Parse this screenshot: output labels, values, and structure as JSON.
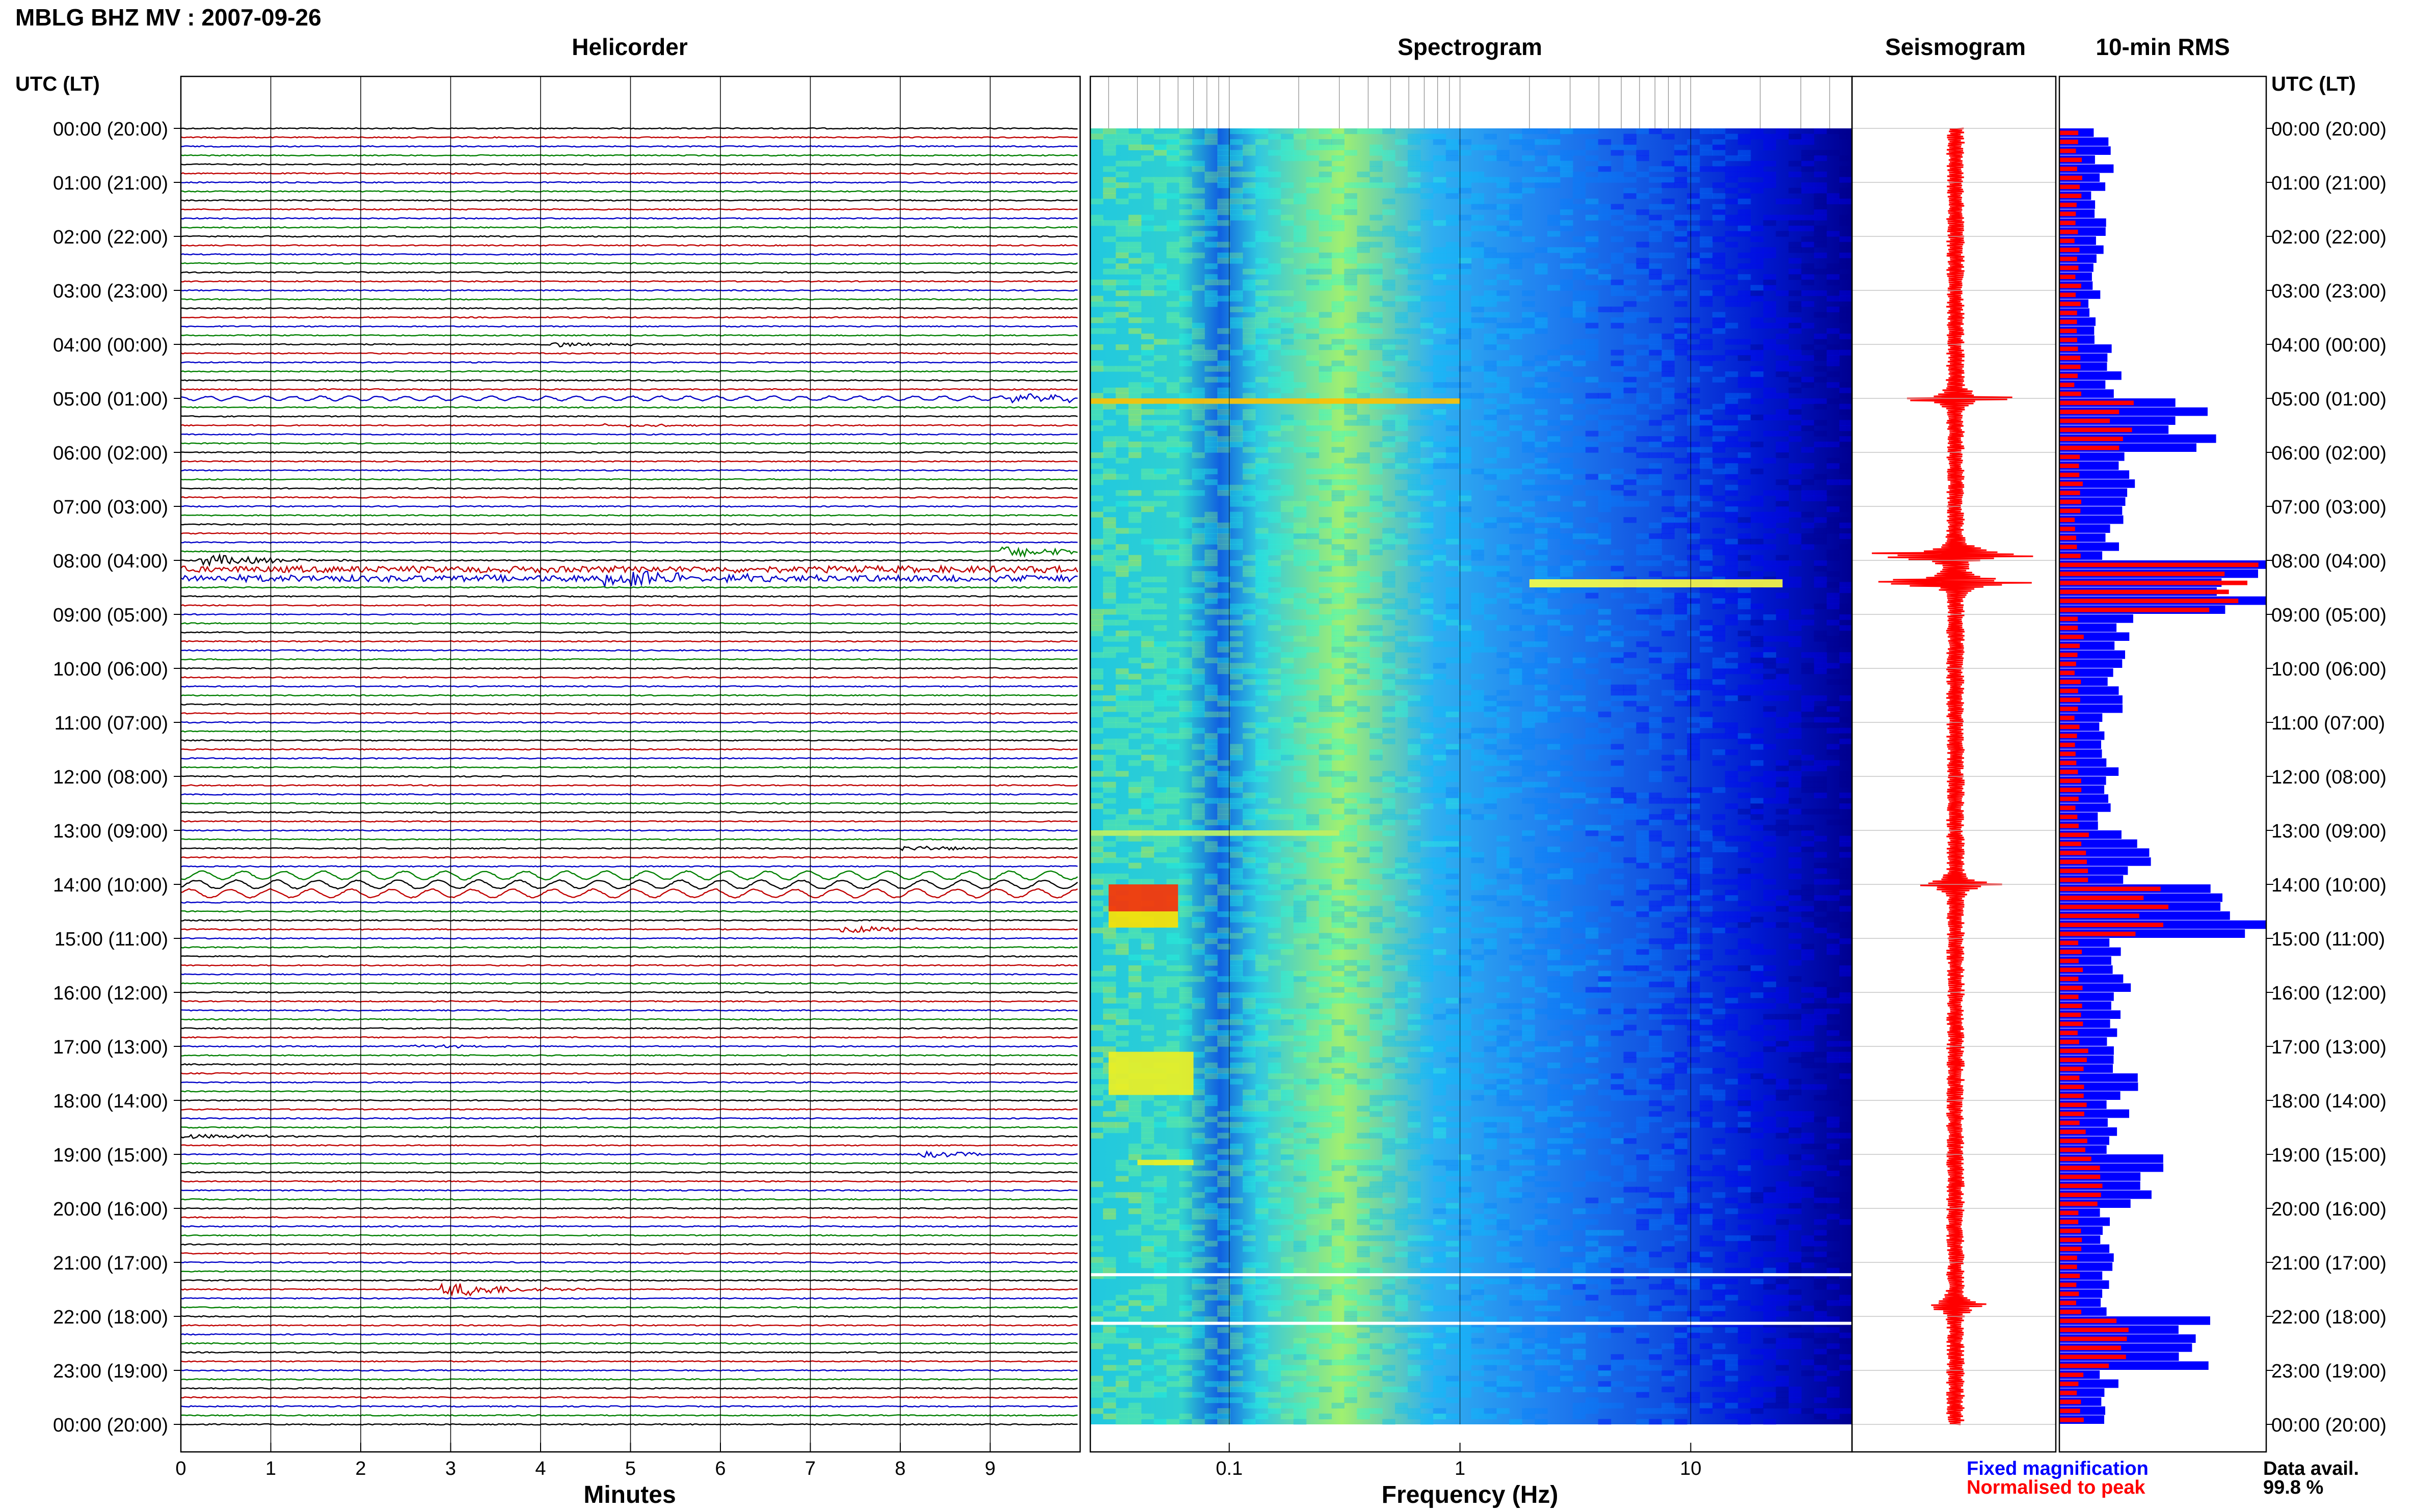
{
  "header": {
    "title": "MBLG BHZ MV : 2007-09-26",
    "left_axis_label": "UTC (LT)",
    "right_axis_label": "UTC (LT)"
  },
  "legend": {
    "fixed_label": "Fixed magnification",
    "normalised_label": "Normalised to peak",
    "data_avail_label": "Data avail.",
    "data_avail_value": "99.8 %"
  },
  "colors": {
    "trace_cycle": [
      "#000000",
      "#c00000",
      "#0000c8",
      "#008000"
    ],
    "rms_fixed": "#0000ff",
    "rms_normalised": "#ff0000",
    "seismogram": "#ff0000"
  },
  "chart_data": [
    {
      "type": "line",
      "title": "Helicorder",
      "xlabel": "Minutes",
      "xlim": [
        0,
        10
      ],
      "x_ticks": [
        "0",
        "1",
        "2",
        "3",
        "4",
        "5",
        "6",
        "7",
        "8",
        "9"
      ],
      "rows_per_hour": 6,
      "y_tick_labels": [
        "00:00 (20:00)",
        "01:00 (21:00)",
        "02:00 (22:00)",
        "03:00 (23:00)",
        "04:00 (00:00)",
        "05:00 (01:00)",
        "06:00 (02:00)",
        "07:00 (03:00)",
        "08:00 (04:00)",
        "09:00 (05:00)",
        "10:00 (06:00)",
        "11:00 (07:00)",
        "12:00 (08:00)",
        "13:00 (09:00)",
        "14:00 (10:00)",
        "15:00 (11:00)",
        "16:00 (12:00)",
        "17:00 (13:00)",
        "18:00 (14:00)",
        "19:00 (15:00)",
        "20:00 (16:00)",
        "21:00 (17:00)",
        "22:00 (18:00)",
        "23:00 (19:00)",
        "00:00 (20:00)"
      ],
      "events": [
        {
          "hour": 4.0,
          "minute": 4.4,
          "amp": 4
        },
        {
          "hour": 5.0,
          "minute": 9.5,
          "amp": 6
        },
        {
          "hour": 5.5,
          "minute": 5.0,
          "amp": 3
        },
        {
          "hour": 7.8,
          "minute": 9.4,
          "amp": 10
        },
        {
          "hour": 8.0,
          "minute": 0.5,
          "amp": 10
        },
        {
          "hour": 8.3,
          "minute": 5.0,
          "amp": 14
        },
        {
          "hour": 13.3,
          "minute": 8.3,
          "amp": 4
        },
        {
          "hour": 14.9,
          "minute": 7.6,
          "amp": 6
        },
        {
          "hour": 17.0,
          "minute": 2.8,
          "amp": 3
        },
        {
          "hour": 18.6,
          "minute": 0.3,
          "amp": 4
        },
        {
          "hour": 19.0,
          "minute": 8.5,
          "amp": 5
        },
        {
          "hour": 21.5,
          "minute": 3.2,
          "amp": 12
        }
      ]
    },
    {
      "type": "heatmap",
      "title": "Spectrogram",
      "xlabel": "Frequency (Hz)",
      "x_scale": "log",
      "xlim": [
        0.025,
        50
      ],
      "x_ticks": [
        "0.1",
        "1",
        "10"
      ],
      "colormap": [
        "#00008c",
        "#0000ff",
        "#0080ff",
        "#00c0ff",
        "#20ffe0",
        "#80ff80",
        "#ffff00",
        "#ff8000",
        "#ff0000"
      ],
      "ylim_hours": [
        0,
        24
      ]
    },
    {
      "type": "line",
      "title": "Seismogram",
      "ylim_hours": [
        0,
        24
      ],
      "peaks": [
        {
          "hour": 5.0,
          "amp": 0.5
        },
        {
          "hour": 7.9,
          "amp": 1.0
        },
        {
          "hour": 8.4,
          "amp": 0.85
        },
        {
          "hour": 14.0,
          "amp": 0.35
        },
        {
          "hour": 21.8,
          "amp": 0.3
        }
      ]
    },
    {
      "type": "bar",
      "title": "10-min RMS",
      "series": [
        {
          "name": "Fixed magnification"
        },
        {
          "name": "Normalised to peak"
        }
      ],
      "xlim": [
        0,
        1
      ],
      "ylim_hours": [
        0,
        24
      ],
      "hourly_rms_fixed": [
        0.22,
        0.2,
        0.2,
        0.18,
        0.26,
        0.65,
        0.32,
        0.26,
        1.0,
        0.3,
        0.26,
        0.24,
        0.24,
        0.4,
        0.95,
        0.3,
        0.28,
        0.34,
        0.3,
        0.42,
        0.26,
        0.24,
        0.62,
        0.24,
        0.24
      ],
      "hourly_rms_normalised": [
        0.1,
        0.09,
        0.09,
        0.09,
        0.09,
        0.3,
        0.1,
        0.09,
        0.9,
        0.1,
        0.09,
        0.09,
        0.09,
        0.12,
        0.45,
        0.1,
        0.1,
        0.12,
        0.12,
        0.18,
        0.1,
        0.1,
        0.28,
        0.1,
        0.1
      ]
    }
  ]
}
